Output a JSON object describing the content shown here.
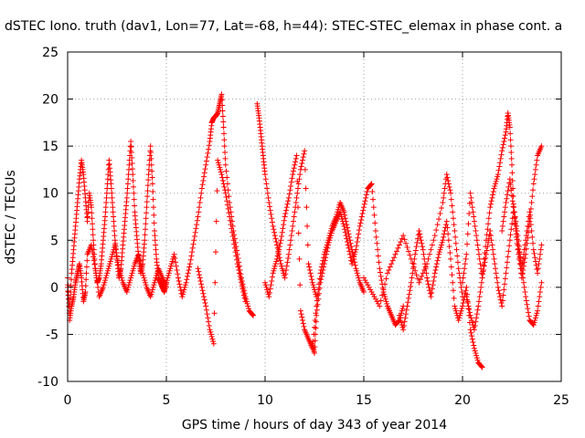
{
  "chart_data": {
    "type": "scatter",
    "title": "dSTEC Iono. truth (dav1, Lon=77, Lat=-68, h=44): STEC-STEC_elemax in phase cont. a",
    "xlabel": "GPS time / hours of day 343 of year 2014",
    "ylabel": "dSTEC  / TECUs",
    "xlim": [
      0,
      25
    ],
    "ylim": [
      -10,
      25
    ],
    "xticks": [
      0,
      5,
      10,
      15,
      20,
      25
    ],
    "yticks": [
      -10,
      -5,
      0,
      5,
      10,
      15,
      20,
      25
    ],
    "grid": true,
    "marker": "+",
    "color": "#ff0000",
    "series": [
      {
        "x": [
          0.0,
          0.1,
          0.2,
          0.3,
          0.4,
          0.5,
          0.6,
          0.7,
          0.8,
          0.9,
          1.0,
          1.1,
          1.2,
          1.3,
          1.4,
          1.5,
          1.6,
          1.7,
          1.8,
          1.9,
          2.0,
          2.1,
          2.2,
          2.3,
          2.4,
          2.5,
          2.6,
          2.7,
          2.8,
          2.9,
          3.0,
          3.1,
          3.2,
          3.3,
          3.4,
          3.5,
          3.6,
          3.7,
          3.8,
          3.9,
          4.0,
          4.1,
          4.2,
          4.3,
          4.4,
          4.5,
          4.6,
          4.7,
          4.8,
          4.9,
          5.0
        ],
        "y": [
          0.0,
          -2.5,
          1.5,
          4.0,
          6.5,
          9.0,
          11.5,
          13.5,
          12.0,
          9.5,
          7.0,
          10.0,
          8.5,
          5.0,
          2.0,
          0.5,
          1.0,
          2.5,
          5.0,
          7.5,
          10.5,
          13.5,
          11.0,
          8.0,
          5.0,
          3.0,
          1.0,
          2.0,
          4.5,
          7.0,
          9.5,
          12.5,
          15.5,
          12.0,
          8.0,
          5.5,
          3.0,
          1.5,
          2.5,
          5.0,
          8.5,
          12.0,
          15.0,
          11.0,
          6.0,
          3.0,
          1.0,
          0.5,
          0.0,
          -0.5,
          0.5
        ]
      },
      {
        "x": [
          0.0,
          0.1,
          0.2,
          0.3,
          0.4,
          0.5,
          0.6,
          0.7,
          0.8,
          0.9,
          1.0,
          1.2,
          1.4,
          1.6,
          1.8,
          2.0,
          2.2,
          2.4,
          2.6,
          2.8,
          3.0,
          3.2,
          3.4,
          3.6,
          3.8,
          4.0,
          4.2,
          4.4,
          4.6,
          4.8,
          5.0
        ],
        "y": [
          1.0,
          -3.5,
          -2.0,
          -1.0,
          0.5,
          1.5,
          2.5,
          1.0,
          -1.5,
          -0.5,
          3.5,
          4.5,
          2.0,
          -1.0,
          0.0,
          1.5,
          3.0,
          4.5,
          2.0,
          0.5,
          -0.5,
          1.0,
          2.5,
          3.5,
          1.5,
          0.0,
          -1.0,
          0.5,
          2.0,
          1.0,
          0.0
        ]
      },
      {
        "x": [
          5.0,
          5.2,
          5.4,
          5.6,
          5.8,
          6.0,
          6.2,
          6.4,
          6.6,
          6.8,
          7.0,
          7.2,
          7.3,
          7.4,
          7.5,
          7.6,
          7.7,
          7.8,
          7.9,
          8.0,
          8.2,
          8.4,
          8.6,
          8.8,
          9.0,
          9.2,
          9.4
        ],
        "y": [
          0.5,
          2.0,
          3.5,
          1.0,
          -1.0,
          0.5,
          2.5,
          5.0,
          7.5,
          10.5,
          13.0,
          15.5,
          17.5,
          18.0,
          18.2,
          18.5,
          19.5,
          20.5,
          17.0,
          13.0,
          9.0,
          6.0,
          3.5,
          1.0,
          -1.0,
          -2.5,
          -3.0
        ]
      },
      {
        "x": [
          6.6,
          6.8,
          7.0,
          7.2,
          7.4,
          7.6,
          7.8,
          8.0,
          8.2,
          8.4,
          8.6,
          8.8,
          9.0
        ],
        "y": [
          2.0,
          0.0,
          -2.0,
          -4.5,
          -6.0,
          13.5,
          12.0,
          10.0,
          7.5,
          5.0,
          2.5,
          0.5,
          -1.5
        ]
      },
      {
        "x": [
          9.6,
          9.7,
          9.8,
          9.9,
          10.0,
          10.2,
          10.4,
          10.6,
          10.8,
          11.0,
          11.2,
          11.4,
          11.6,
          11.8,
          12.0,
          12.2,
          12.4,
          12.6
        ],
        "y": [
          19.5,
          18.0,
          16.0,
          14.0,
          12.0,
          9.0,
          6.5,
          4.5,
          2.5,
          1.0,
          3.5,
          6.5,
          9.5,
          12.5,
          14.5,
          2.5,
          0.5,
          -1.0
        ]
      },
      {
        "x": [
          10.0,
          10.2,
          10.4,
          10.6,
          10.8,
          11.0,
          11.2,
          11.4,
          11.6,
          11.8,
          12.0,
          12.2,
          12.4,
          12.6,
          12.8,
          13.0,
          13.2,
          13.4,
          13.6,
          13.8,
          14.0,
          14.2,
          14.4,
          14.6,
          14.8,
          15.0
        ],
        "y": [
          0.5,
          -1.0,
          1.5,
          3.0,
          5.0,
          7.5,
          9.5,
          12.0,
          14.0,
          -2.5,
          -4.5,
          -5.5,
          -6.5,
          -2.0,
          1.5,
          3.5,
          5.0,
          6.5,
          7.5,
          9.0,
          8.0,
          6.0,
          4.0,
          2.0,
          0.5,
          -0.5
        ]
      },
      {
        "x": [
          12.4,
          12.5,
          12.6,
          12.8,
          13.0,
          13.2,
          13.4,
          13.6,
          13.8,
          14.0,
          14.2,
          14.4,
          14.6,
          14.8,
          15.0,
          15.2,
          15.4,
          15.6,
          15.8,
          16.0,
          16.2,
          16.4,
          16.6,
          16.8,
          17.0
        ],
        "y": [
          -6.0,
          -7.0,
          -3.0,
          0.5,
          2.5,
          4.5,
          6.0,
          7.0,
          8.0,
          6.5,
          4.5,
          2.5,
          4.0,
          6.5,
          8.5,
          10.5,
          11.0,
          6.0,
          2.0,
          -0.5,
          -2.0,
          -3.0,
          -4.0,
          -3.5,
          -2.0
        ]
      },
      {
        "x": [
          15.0,
          15.4,
          15.8,
          16.2,
          16.6,
          17.0,
          17.4,
          17.8,
          18.2,
          18.6,
          19.0,
          19.2,
          19.4,
          19.6,
          19.8,
          20.0
        ],
        "y": [
          1.0,
          -0.5,
          -2.0,
          1.5,
          3.5,
          5.5,
          3.0,
          0.5,
          2.5,
          5.5,
          9.0,
          12.0,
          10.0,
          6.0,
          2.0,
          -1.0
        ]
      },
      {
        "x": [
          16.8,
          17.0,
          17.2,
          17.4,
          17.6,
          17.8,
          18.0,
          18.2,
          18.4,
          18.6,
          18.8,
          19.0,
          19.2,
          19.4,
          19.6,
          19.8,
          20.0,
          20.2,
          20.4,
          20.6,
          20.8,
          21.0
        ],
        "y": [
          -3.0,
          -4.5,
          -2.0,
          0.5,
          3.5,
          6.0,
          4.0,
          1.0,
          -1.0,
          1.5,
          3.5,
          5.0,
          7.0,
          3.0,
          -2.0,
          -3.5,
          -2.0,
          0.0,
          -4.5,
          -6.5,
          -8.0,
          -8.5
        ]
      },
      {
        "x": [
          20.0,
          20.2,
          20.4,
          20.6,
          20.8,
          21.0,
          21.2,
          21.4,
          21.6,
          21.8,
          22.0,
          22.2,
          22.3,
          22.4,
          22.5,
          22.6,
          22.8,
          23.0,
          23.2,
          23.4,
          23.6,
          23.8,
          24.0
        ],
        "y": [
          0.5,
          3.5,
          10.0,
          7.0,
          4.0,
          1.0,
          5.0,
          8.5,
          10.5,
          12.0,
          14.5,
          16.5,
          18.5,
          17.0,
          13.0,
          8.0,
          4.0,
          1.0,
          3.5,
          7.0,
          11.0,
          14.0,
          15.0
        ]
      },
      {
        "x": [
          20.2,
          20.4,
          20.6,
          20.8,
          21.0,
          21.2,
          21.4,
          21.6,
          21.8,
          22.0,
          22.2,
          22.4,
          22.6,
          22.8,
          23.0,
          23.2,
          23.4,
          23.6,
          23.8,
          24.0
        ],
        "y": [
          -1.0,
          -3.0,
          -4.5,
          -2.0,
          1.0,
          3.5,
          6.0,
          3.0,
          0.0,
          -2.0,
          1.5,
          5.0,
          8.5,
          5.5,
          2.0,
          -1.0,
          -3.5,
          -4.0,
          -2.5,
          0.5
        ]
      },
      {
        "x": [
          22.0,
          22.2,
          22.4,
          22.6,
          22.8,
          23.0,
          23.2,
          23.4,
          23.6,
          23.8,
          24.0
        ],
        "y": [
          6.0,
          9.0,
          11.5,
          8.0,
          4.5,
          2.0,
          5.0,
          8.0,
          4.0,
          1.5,
          4.5
        ]
      }
    ]
  }
}
